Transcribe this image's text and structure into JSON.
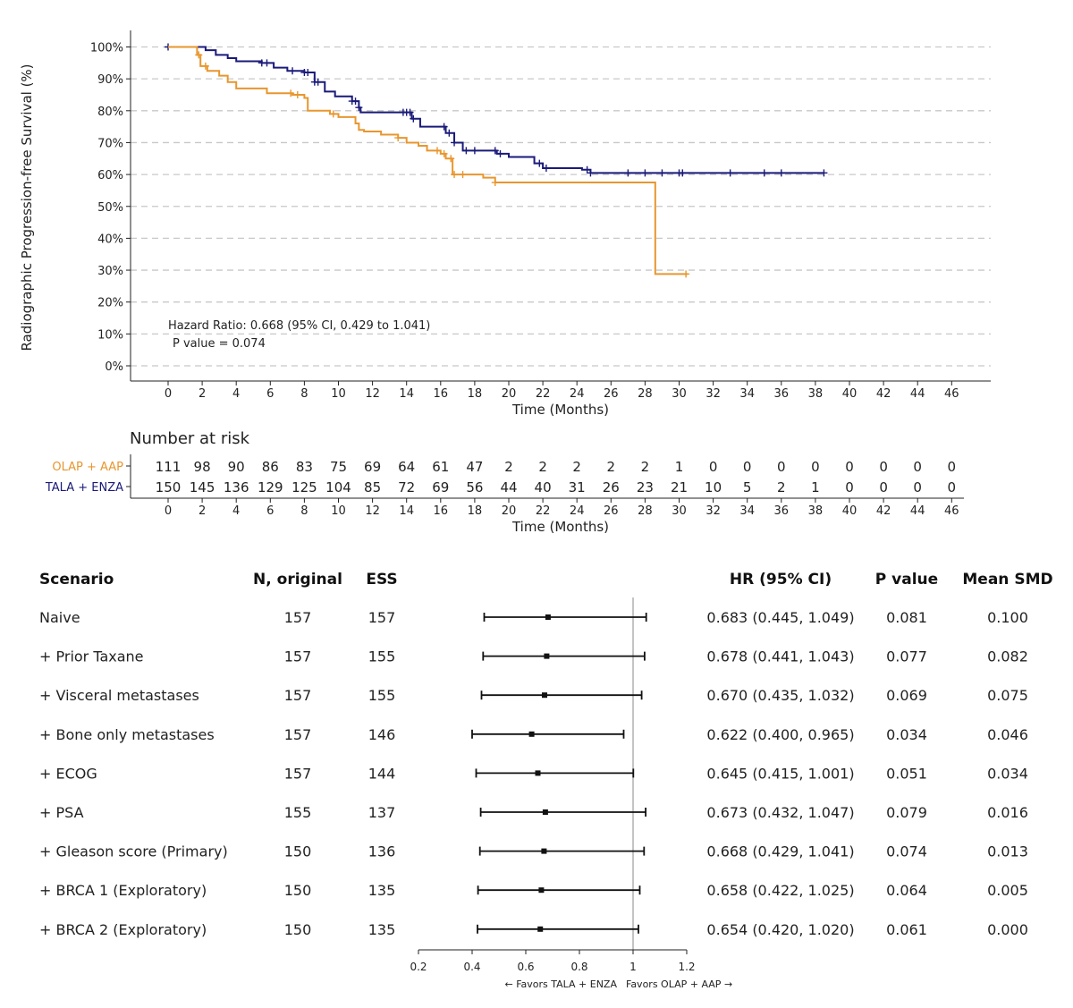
{
  "chart_data": [
    {
      "type": "line",
      "subtype": "kaplan-meier",
      "xlabel": "Time (Months)",
      "ylabel": "Radiographic Progression-free Survival (%)",
      "xlim": [
        -2,
        48
      ],
      "ylim": [
        -5,
        105
      ],
      "x_ticks": [
        "0",
        "2",
        "4",
        "6",
        "8",
        "10",
        "12",
        "14",
        "16",
        "18",
        "20",
        "22",
        "24",
        "26",
        "28",
        "30",
        "32",
        "34",
        "36",
        "38",
        "40",
        "42",
        "44",
        "46"
      ],
      "y_ticks": [
        "0%",
        "10%",
        "20%",
        "30%",
        "40%",
        "50%",
        "60%",
        "70%",
        "80%",
        "90%",
        "100%"
      ],
      "grid": "horizontal dashed",
      "annotation_hr": "Hazard Ratio: 0.668 (95% CI, 0.429 to 1.041)",
      "annotation_p": "P value =  0.074",
      "series": [
        {
          "name": "TALA + ENZA",
          "color": "#1a1a7a",
          "points": [
            [
              0,
              100
            ],
            [
              1.8,
              100
            ],
            [
              2.2,
              99
            ],
            [
              2.8,
              97.5
            ],
            [
              3.5,
              96.5
            ],
            [
              4,
              95.5
            ],
            [
              5.5,
              95
            ],
            [
              6.2,
              93.5
            ],
            [
              7,
              92.5
            ],
            [
              8,
              92
            ],
            [
              8.6,
              89
            ],
            [
              9.2,
              86
            ],
            [
              9.8,
              84.5
            ],
            [
              10.8,
              83
            ],
            [
              11.2,
              81
            ],
            [
              11.3,
              79.5
            ],
            [
              14,
              79.5
            ],
            [
              14.3,
              77.5
            ],
            [
              14.8,
              75
            ],
            [
              16.3,
              73
            ],
            [
              16.8,
              70
            ],
            [
              17.3,
              67.5
            ],
            [
              19.3,
              66.5
            ],
            [
              20,
              65.5
            ],
            [
              21.5,
              63.5
            ],
            [
              22,
              62
            ],
            [
              24.3,
              61.5
            ],
            [
              24.8,
              60.5
            ],
            [
              38.5,
              60.5
            ]
          ],
          "censor_x": [
            0,
            5.5,
            5.8,
            7.3,
            8,
            8.2,
            8.6,
            8.8,
            10.8,
            11,
            11.2,
            13.8,
            14,
            14.2,
            14.4,
            16.2,
            16.5,
            16.8,
            17.5,
            18,
            19.2,
            19.5,
            21.8,
            22.2,
            24.6,
            24.8,
            27,
            28,
            29,
            30,
            30.2,
            33,
            35,
            36,
            38.5
          ]
        },
        {
          "name": "OLAP + AAP",
          "color": "#e8962e",
          "points": [
            [
              0,
              100
            ],
            [
              1.6,
              100
            ],
            [
              1.7,
              97.5
            ],
            [
              1.9,
              94
            ],
            [
              2.3,
              92.5
            ],
            [
              3,
              91
            ],
            [
              3.5,
              89
            ],
            [
              4,
              87
            ],
            [
              5.5,
              87
            ],
            [
              5.8,
              85.5
            ],
            [
              7.3,
              85
            ],
            [
              8,
              84
            ],
            [
              8.2,
              80
            ],
            [
              9.5,
              79
            ],
            [
              10,
              78
            ],
            [
              11,
              76
            ],
            [
              11.2,
              74
            ],
            [
              11.5,
              73.5
            ],
            [
              12.5,
              72.5
            ],
            [
              13.5,
              71.5
            ],
            [
              14,
              70
            ],
            [
              14.7,
              69
            ],
            [
              15.2,
              67.5
            ],
            [
              16,
              66.5
            ],
            [
              16.3,
              65
            ],
            [
              16.7,
              60
            ],
            [
              18.5,
              59
            ],
            [
              19.2,
              57.5
            ],
            [
              28.6,
              57.5
            ],
            [
              28.6,
              28.8
            ],
            [
              30.5,
              28.8
            ]
          ],
          "censor_x": [
            1.8,
            2.2,
            7.2,
            7.6,
            9.7,
            13.5,
            15.8,
            16.2,
            16.6,
            16.8,
            17.3,
            19.2,
            30.4
          ]
        }
      ]
    },
    {
      "type": "table",
      "title": "Number at risk",
      "xlabel": "Time (Months)",
      "x": [
        0,
        2,
        4,
        6,
        8,
        10,
        12,
        14,
        16,
        18,
        20,
        22,
        24,
        26,
        28,
        30,
        32,
        34,
        36,
        38,
        40,
        42,
        44,
        46
      ],
      "rows": [
        {
          "name": "OLAP + AAP",
          "color": "#e8962e",
          "values": [
            "111",
            "98",
            "90",
            "86",
            "83",
            "75",
            "69",
            "64",
            "61",
            "47",
            "2",
            "2",
            "2",
            "2",
            "2",
            "1",
            "0",
            "0",
            "0",
            "0",
            "0",
            "0",
            "0",
            "0"
          ]
        },
        {
          "name": "TALA + ENZA",
          "color": "#1a1a7a",
          "values": [
            "150",
            "145",
            "136",
            "129",
            "125",
            "104",
            "85",
            "72",
            "69",
            "56",
            "44",
            "40",
            "31",
            "26",
            "23",
            "21",
            "10",
            "5",
            "2",
            "1",
            "0",
            "0",
            "0",
            "0"
          ]
        }
      ]
    },
    {
      "type": "scatter",
      "subtype": "forest",
      "headers": {
        "scenario": "Scenario",
        "n": "N, original",
        "ess": "ESS",
        "hr": "HR (95% CI)",
        "p": "P value",
        "smd": "Mean SMD"
      },
      "xlim": [
        0.2,
        1.2
      ],
      "reference_line": 1,
      "x_ticks": [
        "0.2",
        "0.4",
        "0.6",
        "0.8",
        "1",
        "1.2"
      ],
      "xlabel_left": "← Favors TALA + ENZA",
      "xlabel_right": "Favors OLAP + AAP →",
      "rows": [
        {
          "scenario": "Naive",
          "n": "157",
          "ess": "157",
          "hr": 0.683,
          "lo": 0.445,
          "hi": 1.049,
          "hr_text": "0.683 (0.445, 1.049)",
          "p": "0.081",
          "smd": "0.100"
        },
        {
          "scenario": "+ Prior Taxane",
          "n": "157",
          "ess": "155",
          "hr": 0.678,
          "lo": 0.441,
          "hi": 1.043,
          "hr_text": "0.678 (0.441, 1.043)",
          "p": "0.077",
          "smd": "0.082"
        },
        {
          "scenario": "+ Visceral metastases",
          "n": "157",
          "ess": "155",
          "hr": 0.67,
          "lo": 0.435,
          "hi": 1.032,
          "hr_text": "0.670 (0.435, 1.032)",
          "p": "0.069",
          "smd": "0.075"
        },
        {
          "scenario": "+ Bone only metastases",
          "n": "157",
          "ess": "146",
          "hr": 0.622,
          "lo": 0.4,
          "hi": 0.965,
          "hr_text": "0.622 (0.400, 0.965)",
          "p": "0.034",
          "smd": "0.046"
        },
        {
          "scenario": "+ ECOG",
          "n": "157",
          "ess": "144",
          "hr": 0.645,
          "lo": 0.415,
          "hi": 1.001,
          "hr_text": "0.645 (0.415, 1.001)",
          "p": "0.051",
          "smd": "0.034"
        },
        {
          "scenario": "+ PSA",
          "n": "155",
          "ess": "137",
          "hr": 0.673,
          "lo": 0.432,
          "hi": 1.047,
          "hr_text": "0.673 (0.432, 1.047)",
          "p": "0.079",
          "smd": "0.016"
        },
        {
          "scenario": "+ Gleason score (Primary)",
          "n": "150",
          "ess": "136",
          "hr": 0.668,
          "lo": 0.429,
          "hi": 1.041,
          "hr_text": "0.668 (0.429, 1.041)",
          "p": "0.074",
          "smd": "0.013"
        },
        {
          "scenario": "+ BRCA 1 (Exploratory)",
          "n": "150",
          "ess": "135",
          "hr": 0.658,
          "lo": 0.422,
          "hi": 1.025,
          "hr_text": "0.658 (0.422, 1.025)",
          "p": "0.064",
          "smd": "0.005"
        },
        {
          "scenario": "+ BRCA 2 (Exploratory)",
          "n": "150",
          "ess": "135",
          "hr": 0.654,
          "lo": 0.42,
          "hi": 1.02,
          "hr_text": "0.654 (0.420, 1.020)",
          "p": "0.061",
          "smd": "0.000"
        }
      ]
    }
  ]
}
